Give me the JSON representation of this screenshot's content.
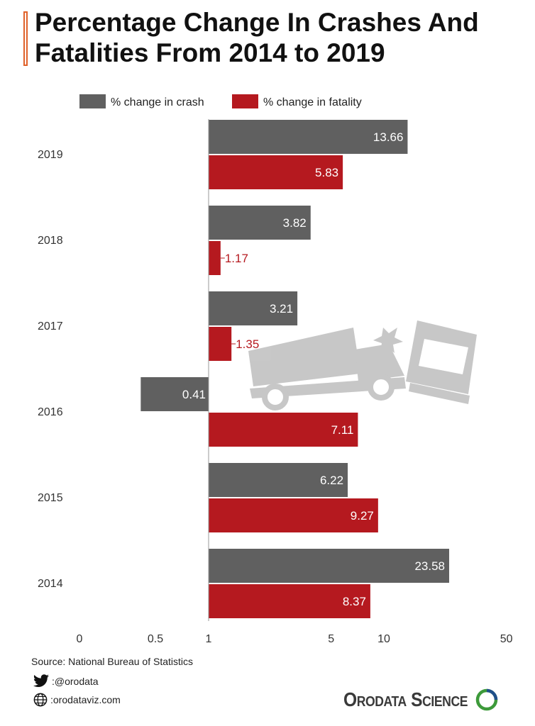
{
  "title": "Percentage Change In Crashes And Fatalities From 2014 to 2019",
  "source": "Source: National Bureau of Statistics",
  "social": {
    "twitter": ":@orodata",
    "website": ":orodataviz.com"
  },
  "brand": {
    "name": "Orodata Science"
  },
  "colors": {
    "crash": "#606060",
    "fatality": "#b5191f",
    "accent": "#e0622a"
  },
  "chart_data": {
    "type": "bar",
    "orientation": "horizontal",
    "title": "Percentage Change In Crashes And Fatalities From 2014 to 2019",
    "categories": [
      "2019",
      "2018",
      "2017",
      "2016",
      "2015",
      "2014"
    ],
    "series": [
      {
        "name": "% change in crash",
        "values": [
          13.66,
          3.82,
          3.21,
          0.41,
          6.22,
          23.58
        ],
        "labels": [
          "13.66",
          "3.82",
          "3.21",
          "0.41",
          "6.22",
          "23.58"
        ]
      },
      {
        "name": "% change in fatality",
        "values": [
          5.83,
          1.17,
          1.35,
          7.11,
          9.27,
          8.37
        ],
        "labels": [
          "5.83",
          "1.17",
          "1.35",
          "7.11",
          "9.27",
          "8.37"
        ]
      }
    ],
    "x_scale": "log",
    "x_baseline": 1,
    "x_ticks": [
      "0",
      "0.5",
      "1",
      "5",
      "10",
      "50"
    ],
    "legend_position": "top",
    "grid": false
  }
}
